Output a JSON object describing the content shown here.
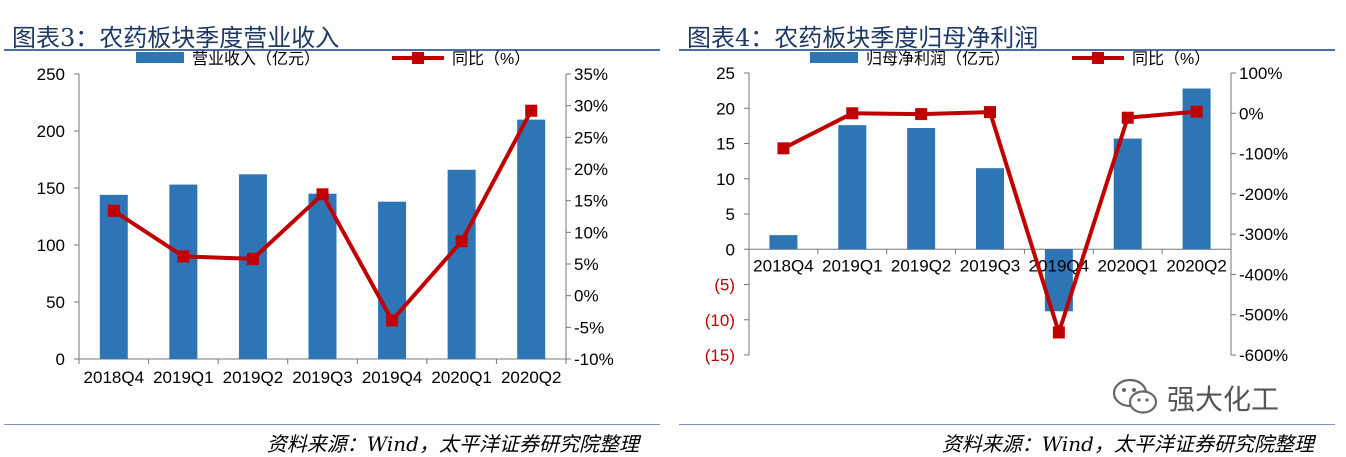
{
  "left": {
    "title": "图表3：农药板块季度营业收入",
    "source": "资料来源：Wind，太平洋证券研究院整理"
  },
  "right": {
    "title": "图表4：农药板块季度归母净利润",
    "source": "资料来源：Wind，太平洋证券研究院整理"
  },
  "watermark": {
    "text": "强大化工",
    "icon": "wechat-icon"
  },
  "chart_data": [
    {
      "type": "bar",
      "categories": [
        "2018Q4",
        "2019Q1",
        "2019Q2",
        "2019Q3",
        "2019Q4",
        "2020Q1",
        "2020Q2"
      ],
      "series": [
        {
          "name": "营业收入（亿元）",
          "type": "bar",
          "axis": "left",
          "color": "#2e75b6",
          "values": [
            144,
            153,
            162,
            145,
            138,
            166,
            210
          ]
        },
        {
          "name": "同比（%）",
          "type": "line",
          "axis": "right",
          "color": "#c00000",
          "values": [
            13.4,
            6.2,
            5.8,
            16.0,
            -3.9,
            8.6,
            29.2
          ]
        }
      ],
      "left_axis": {
        "min": 0,
        "max": 250,
        "step": 50,
        "tick_labels": [
          "0",
          "50",
          "100",
          "150",
          "200",
          "250"
        ]
      },
      "right_axis": {
        "min": -10,
        "max": 35,
        "step": 5,
        "tick_labels": [
          "-10%",
          "-5%",
          "0%",
          "5%",
          "10%",
          "15%",
          "20%",
          "25%",
          "30%",
          "35%"
        ]
      },
      "legend_position": "top",
      "grid": false
    },
    {
      "type": "bar",
      "categories": [
        "2018Q4",
        "2019Q1",
        "2019Q2",
        "2019Q3",
        "2019Q4",
        "2020Q1",
        "2020Q2"
      ],
      "series": [
        {
          "name": "归母净利润（亿元）",
          "type": "bar",
          "axis": "left",
          "color": "#2e75b6",
          "values": [
            2.0,
            17.6,
            17.2,
            11.5,
            -8.8,
            15.7,
            22.8
          ]
        },
        {
          "name": "同比（%）",
          "type": "line",
          "axis": "right",
          "color": "#c00000",
          "values": [
            -87,
            0,
            -2,
            3,
            -544,
            -11,
            4
          ]
        }
      ],
      "left_axis": {
        "min": -15,
        "max": 25,
        "step": 5,
        "tick_labels": [
          "(15)",
          "(10)",
          "(5)",
          "0",
          "5",
          "10",
          "15",
          "20",
          "25"
        ],
        "negative_label_color": "#c00000"
      },
      "right_axis": {
        "min": -600,
        "max": 100,
        "step": 100,
        "tick_labels": [
          "-600%",
          "-500%",
          "-400%",
          "-300%",
          "-200%",
          "-100%",
          "0%",
          "100%"
        ]
      },
      "legend_position": "top",
      "grid": false
    }
  ]
}
